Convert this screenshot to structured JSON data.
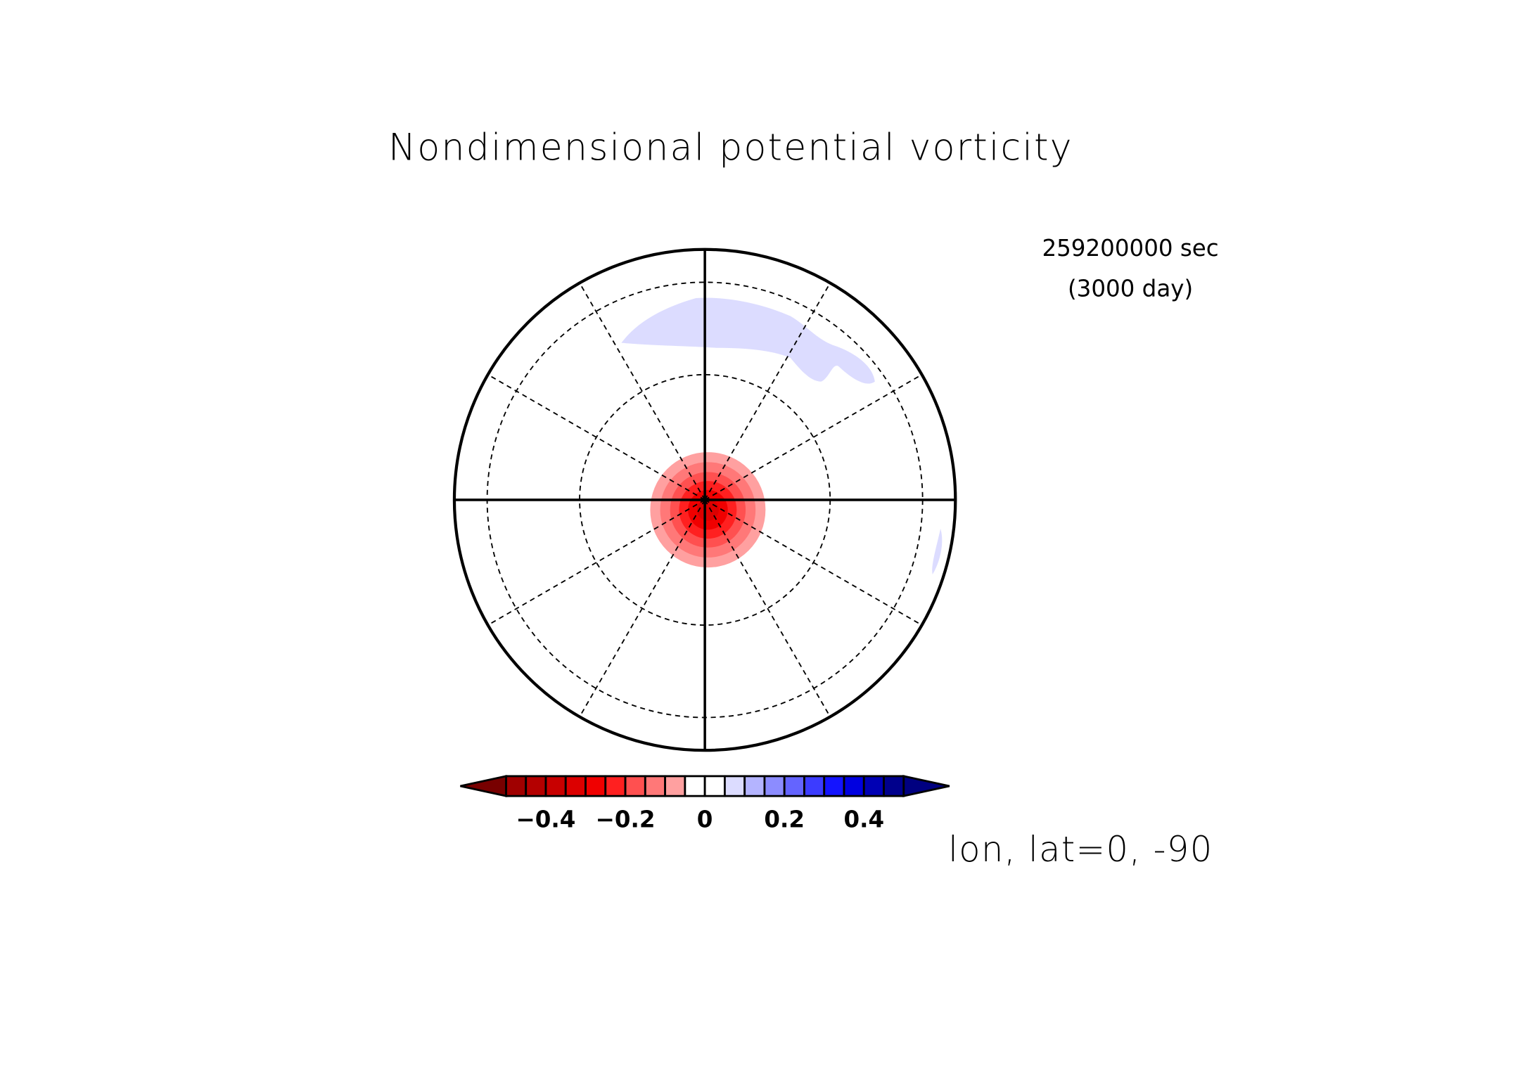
{
  "chart_data": {
    "type": "polar-map",
    "title": "Nondimensional potential vorticity",
    "annotations": [
      "259200000 sec",
      "(3000 day)"
    ],
    "axis_label": "lon, lat=0, -90",
    "colorbar": {
      "levels": [
        -0.5,
        -0.45,
        -0.4,
        -0.35,
        -0.3,
        -0.25,
        -0.2,
        -0.15,
        -0.1,
        -0.05,
        0,
        0.05,
        0.1,
        0.15,
        0.2,
        0.25,
        0.3,
        0.35,
        0.4,
        0.45,
        0.5
      ],
      "colors": [
        "#a00000",
        "#b40000",
        "#c80000",
        "#dc0000",
        "#f00000",
        "#ff2020",
        "#ff5050",
        "#ff7878",
        "#ffa0a0",
        "#ffffff",
        "#ffffff",
        "#dcdcff",
        "#b4b4ff",
        "#8c8cff",
        "#6464ff",
        "#3c3cff",
        "#1414ff",
        "#0000e0",
        "#0000b4",
        "#00008c"
      ],
      "extend_colors": [
        "#780000",
        "#000080"
      ],
      "ticks": [
        {
          "value": -0.4,
          "label": "−0.4"
        },
        {
          "value": -0.2,
          "label": "−0.2"
        },
        0,
        0.2,
        0.4
      ]
    }
  }
}
